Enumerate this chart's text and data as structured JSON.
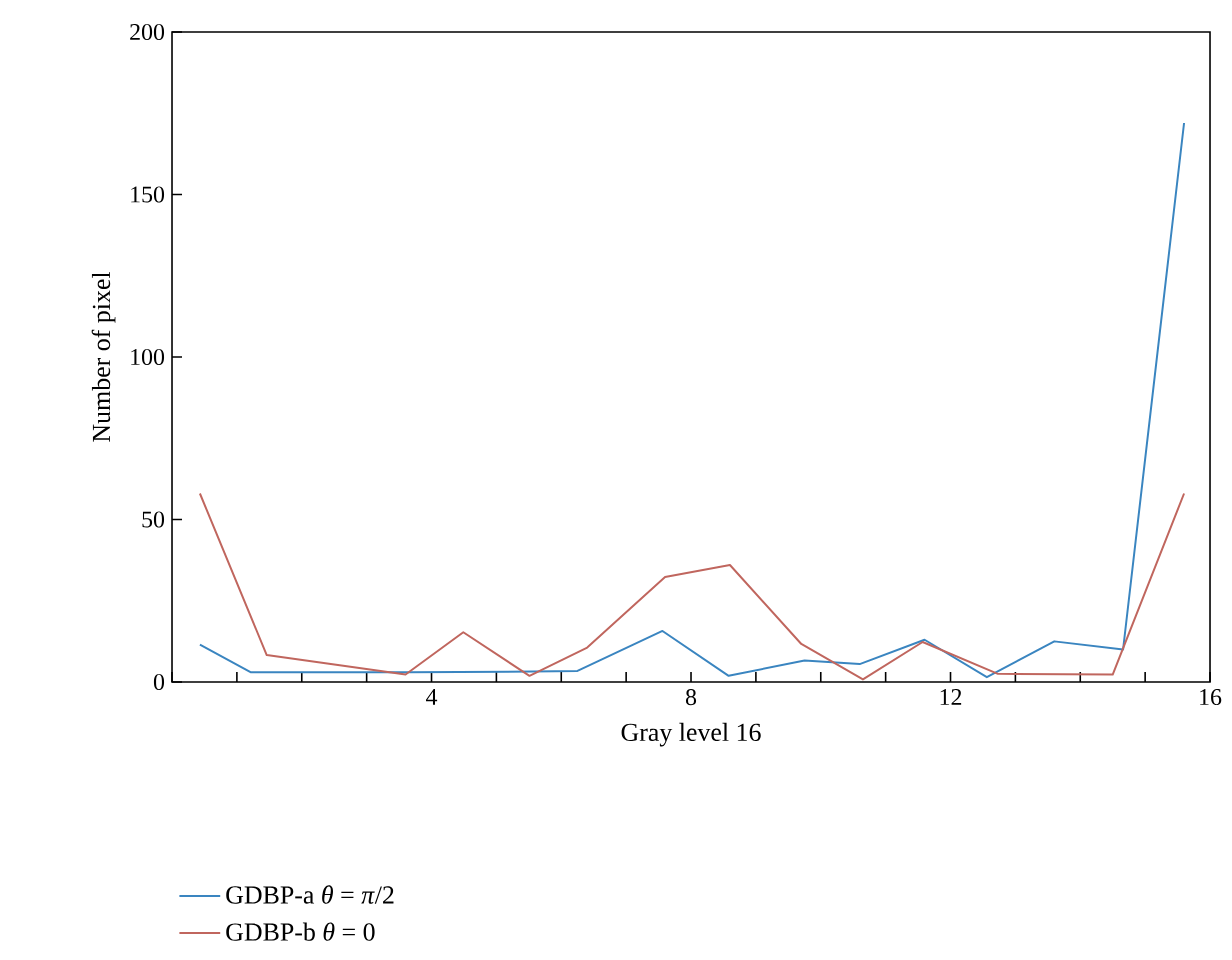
{
  "chart_data": {
    "type": "line",
    "xlabel": "Gray level 16",
    "ylabel": "Number of pixel",
    "xlim": [
      0,
      16
    ],
    "xticks": [
      {
        "value": 0,
        "label": null
      },
      {
        "value": 1,
        "label": null
      },
      {
        "value": 2,
        "label": null
      },
      {
        "value": 3,
        "label": null
      },
      4,
      {
        "value": 5,
        "label": null
      },
      {
        "value": 6,
        "label": null
      },
      {
        "value": 7,
        "label": null
      },
      8,
      {
        "value": 9,
        "label": null
      },
      {
        "value": 10,
        "label": null
      },
      {
        "value": 11,
        "label": null
      },
      12,
      {
        "value": 13,
        "label": null
      },
      {
        "value": 14,
        "label": null
      },
      {
        "value": 15,
        "label": null
      },
      16
    ],
    "ylim": [
      0,
      200
    ],
    "yticks": [
      0,
      50,
      100,
      150,
      200
    ],
    "grid": false,
    "legend": "bottom left",
    "marker": "none",
    "line_style": "solid",
    "series": [
      {
        "name": "GDBP-a *θ* = *π*/2",
        "color": "#3a85c0",
        "x": [
          0.43,
          1.21,
          3.64,
          5.56,
          6.25,
          7.56,
          8.58,
          9.75,
          10.6,
          11.6,
          12.56,
          13.6,
          14.66,
          15.6
        ],
        "values": [
          11.5,
          3,
          3,
          3.2,
          3.4,
          15.7,
          1.9,
          6.6,
          5.5,
          13,
          1.5,
          12.5,
          10,
          172
        ]
      },
      {
        "name": "GDBP-b *θ* = 0",
        "color": "#c0665e",
        "x": [
          0.43,
          1.46,
          3.6,
          4.49,
          5.51,
          6.4,
          7.6,
          8.6,
          9.7,
          10.65,
          11.57,
          12.73,
          14.5,
          15.6
        ],
        "values": [
          58,
          8.3,
          2.3,
          15.3,
          1.9,
          10.6,
          32.3,
          36,
          11.7,
          0.8,
          12.3,
          2.5,
          2.3,
          58
        ]
      }
    ]
  }
}
